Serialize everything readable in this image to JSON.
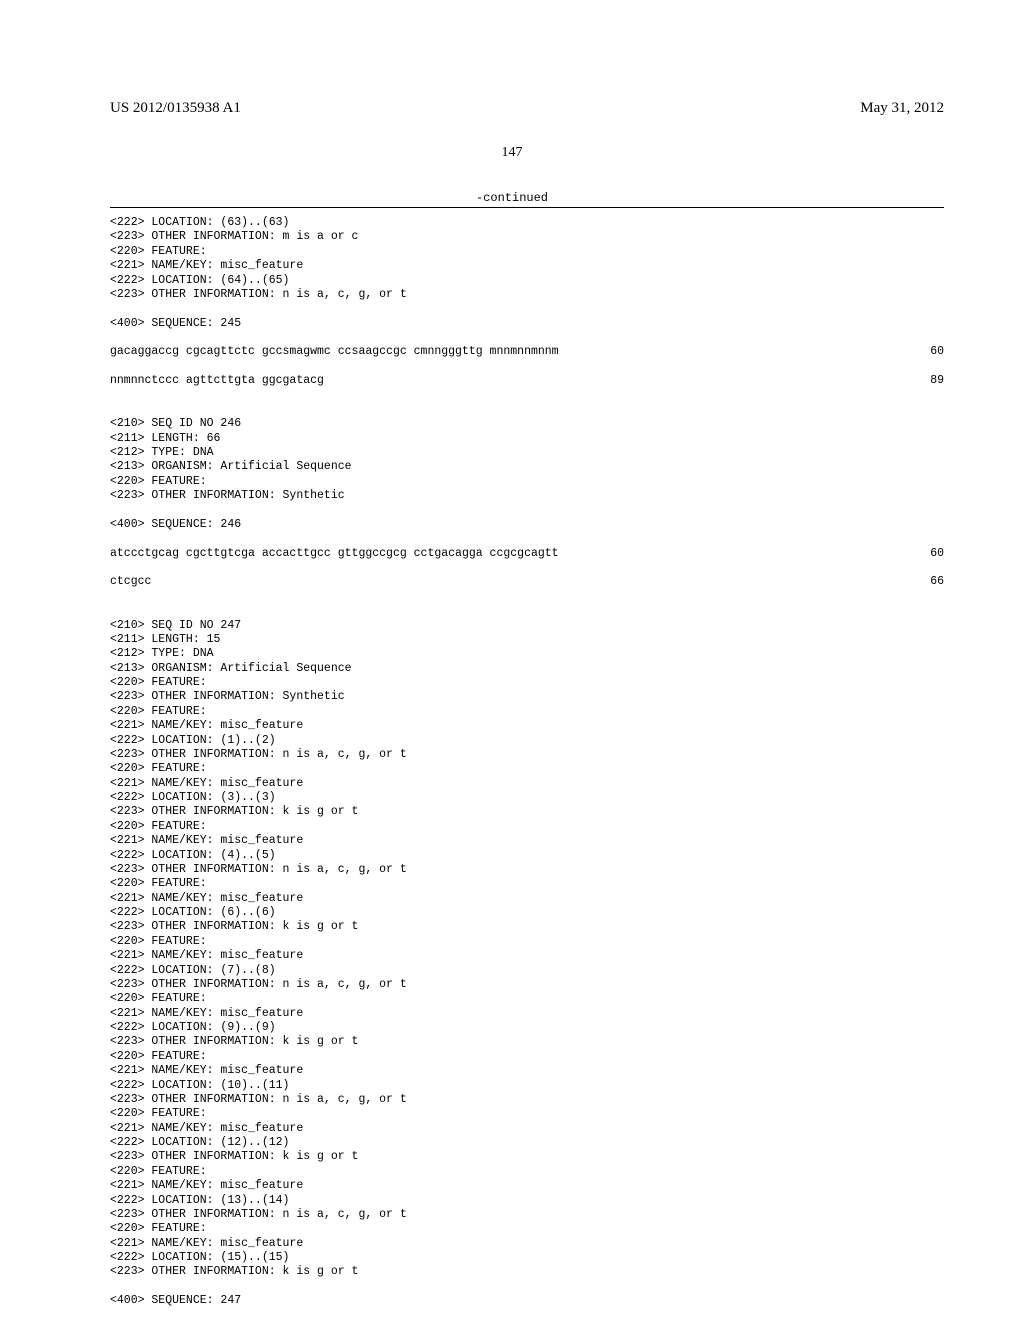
{
  "header": {
    "left": "US 2012/0135938 A1",
    "right": "May 31, 2012"
  },
  "page_number": "147",
  "continued_label": "-continued",
  "blocks": [
    {
      "type": "line",
      "text": "<222> LOCATION: (63)..(63)"
    },
    {
      "type": "line",
      "text": "<223> OTHER INFORMATION: m is a or c"
    },
    {
      "type": "line",
      "text": "<220> FEATURE:"
    },
    {
      "type": "line",
      "text": "<221> NAME/KEY: misc_feature"
    },
    {
      "type": "line",
      "text": "<222> LOCATION: (64)..(65)"
    },
    {
      "type": "line",
      "text": "<223> OTHER INFORMATION: n is a, c, g, or t"
    },
    {
      "type": "blank"
    },
    {
      "type": "line",
      "text": "<400> SEQUENCE: 245"
    },
    {
      "type": "blank"
    },
    {
      "type": "seq",
      "text": "gacaggaccg cgcagttctc gccsmagwmc ccsaagccgc cmnngggttg mnnmnnmnnm",
      "num": "60"
    },
    {
      "type": "blank"
    },
    {
      "type": "seq",
      "text": "nnmnnctccc agttcttgta ggcgatacg",
      "num": "89"
    },
    {
      "type": "blank"
    },
    {
      "type": "blank"
    },
    {
      "type": "line",
      "text": "<210> SEQ ID NO 246"
    },
    {
      "type": "line",
      "text": "<211> LENGTH: 66"
    },
    {
      "type": "line",
      "text": "<212> TYPE: DNA"
    },
    {
      "type": "line",
      "text": "<213> ORGANISM: Artificial Sequence"
    },
    {
      "type": "line",
      "text": "<220> FEATURE:"
    },
    {
      "type": "line",
      "text": "<223> OTHER INFORMATION: Synthetic"
    },
    {
      "type": "blank"
    },
    {
      "type": "line",
      "text": "<400> SEQUENCE: 246"
    },
    {
      "type": "blank"
    },
    {
      "type": "seq",
      "text": "atccctgcag cgcttgtcga accacttgcc gttggccgcg cctgacagga ccgcgcagtt",
      "num": "60"
    },
    {
      "type": "blank"
    },
    {
      "type": "seq",
      "text": "ctcgcc",
      "num": "66"
    },
    {
      "type": "blank"
    },
    {
      "type": "blank"
    },
    {
      "type": "line",
      "text": "<210> SEQ ID NO 247"
    },
    {
      "type": "line",
      "text": "<211> LENGTH: 15"
    },
    {
      "type": "line",
      "text": "<212> TYPE: DNA"
    },
    {
      "type": "line",
      "text": "<213> ORGANISM: Artificial Sequence"
    },
    {
      "type": "line",
      "text": "<220> FEATURE:"
    },
    {
      "type": "line",
      "text": "<223> OTHER INFORMATION: Synthetic"
    },
    {
      "type": "line",
      "text": "<220> FEATURE:"
    },
    {
      "type": "line",
      "text": "<221> NAME/KEY: misc_feature"
    },
    {
      "type": "line",
      "text": "<222> LOCATION: (1)..(2)"
    },
    {
      "type": "line",
      "text": "<223> OTHER INFORMATION: n is a, c, g, or t"
    },
    {
      "type": "line",
      "text": "<220> FEATURE:"
    },
    {
      "type": "line",
      "text": "<221> NAME/KEY: misc_feature"
    },
    {
      "type": "line",
      "text": "<222> LOCATION: (3)..(3)"
    },
    {
      "type": "line",
      "text": "<223> OTHER INFORMATION: k is g or t"
    },
    {
      "type": "line",
      "text": "<220> FEATURE:"
    },
    {
      "type": "line",
      "text": "<221> NAME/KEY: misc_feature"
    },
    {
      "type": "line",
      "text": "<222> LOCATION: (4)..(5)"
    },
    {
      "type": "line",
      "text": "<223> OTHER INFORMATION: n is a, c, g, or t"
    },
    {
      "type": "line",
      "text": "<220> FEATURE:"
    },
    {
      "type": "line",
      "text": "<221> NAME/KEY: misc_feature"
    },
    {
      "type": "line",
      "text": "<222> LOCATION: (6)..(6)"
    },
    {
      "type": "line",
      "text": "<223> OTHER INFORMATION: k is g or t"
    },
    {
      "type": "line",
      "text": "<220> FEATURE:"
    },
    {
      "type": "line",
      "text": "<221> NAME/KEY: misc_feature"
    },
    {
      "type": "line",
      "text": "<222> LOCATION: (7)..(8)"
    },
    {
      "type": "line",
      "text": "<223> OTHER INFORMATION: n is a, c, g, or t"
    },
    {
      "type": "line",
      "text": "<220> FEATURE:"
    },
    {
      "type": "line",
      "text": "<221> NAME/KEY: misc_feature"
    },
    {
      "type": "line",
      "text": "<222> LOCATION: (9)..(9)"
    },
    {
      "type": "line",
      "text": "<223> OTHER INFORMATION: k is g or t"
    },
    {
      "type": "line",
      "text": "<220> FEATURE:"
    },
    {
      "type": "line",
      "text": "<221> NAME/KEY: misc_feature"
    },
    {
      "type": "line",
      "text": "<222> LOCATION: (10)..(11)"
    },
    {
      "type": "line",
      "text": "<223> OTHER INFORMATION: n is a, c, g, or t"
    },
    {
      "type": "line",
      "text": "<220> FEATURE:"
    },
    {
      "type": "line",
      "text": "<221> NAME/KEY: misc_feature"
    },
    {
      "type": "line",
      "text": "<222> LOCATION: (12)..(12)"
    },
    {
      "type": "line",
      "text": "<223> OTHER INFORMATION: k is g or t"
    },
    {
      "type": "line",
      "text": "<220> FEATURE:"
    },
    {
      "type": "line",
      "text": "<221> NAME/KEY: misc_feature"
    },
    {
      "type": "line",
      "text": "<222> LOCATION: (13)..(14)"
    },
    {
      "type": "line",
      "text": "<223> OTHER INFORMATION: n is a, c, g, or t"
    },
    {
      "type": "line",
      "text": "<220> FEATURE:"
    },
    {
      "type": "line",
      "text": "<221> NAME/KEY: misc_feature"
    },
    {
      "type": "line",
      "text": "<222> LOCATION: (15)..(15)"
    },
    {
      "type": "line",
      "text": "<223> OTHER INFORMATION: k is g or t"
    },
    {
      "type": "blank"
    },
    {
      "type": "line",
      "text": "<400> SEQUENCE: 247"
    }
  ]
}
